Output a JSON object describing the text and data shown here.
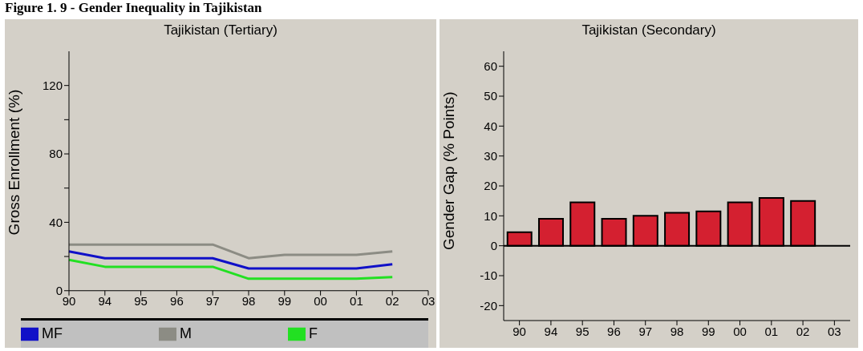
{
  "chart_data": [
    {
      "type": "line",
      "title": "Tajikistan (Tertiary)",
      "ylabel": "Gross Enrollment (%)",
      "annotations": [
        "Figure 1. 9 - Gender Inequality in Tajikistan"
      ],
      "categories": [
        "90",
        "94",
        "95",
        "96",
        "97",
        "98",
        "99",
        "00",
        "01",
        "02",
        "03"
      ],
      "series": [
        {
          "name": "MF",
          "color": "#1010c8",
          "values": [
            23,
            19,
            19,
            19,
            19,
            13,
            13,
            13,
            13,
            15.5,
            null
          ]
        },
        {
          "name": "M",
          "color": "#8c8c84",
          "values": [
            27,
            27,
            27,
            27,
            27,
            19,
            21,
            21,
            21,
            23,
            null
          ]
        },
        {
          "name": "F",
          "color": "#22e022",
          "values": [
            18,
            14,
            14,
            14,
            14,
            7,
            7,
            7,
            7,
            8,
            null
          ]
        }
      ],
      "ylim": [
        0,
        140
      ],
      "yticks": [
        0,
        {
          "value": 20,
          "label": null
        },
        40,
        {
          "value": 60,
          "label": null
        },
        80,
        {
          "value": 100,
          "label": null
        },
        120
      ],
      "legend": "bottom",
      "grid": false
    },
    {
      "type": "bar",
      "title": "Tajikistan (Secondary)",
      "ylabel": "Gender Gap (% Points)",
      "categories": [
        "90",
        "94",
        "95",
        "96",
        "97",
        "98",
        "99",
        "00",
        "01",
        "02",
        "03"
      ],
      "values": [
        4.5,
        9,
        14.5,
        9,
        10,
        11,
        11.5,
        14.5,
        16,
        15,
        null
      ],
      "color": "#d42030",
      "ylim": [
        -25,
        65
      ],
      "yticks": [
        -20,
        -10,
        0,
        10,
        20,
        30,
        40,
        50,
        60
      ],
      "ref_lines": [
        {
          "axis": "y",
          "value": 0,
          "color": "#000000"
        }
      ],
      "grid": false
    }
  ]
}
